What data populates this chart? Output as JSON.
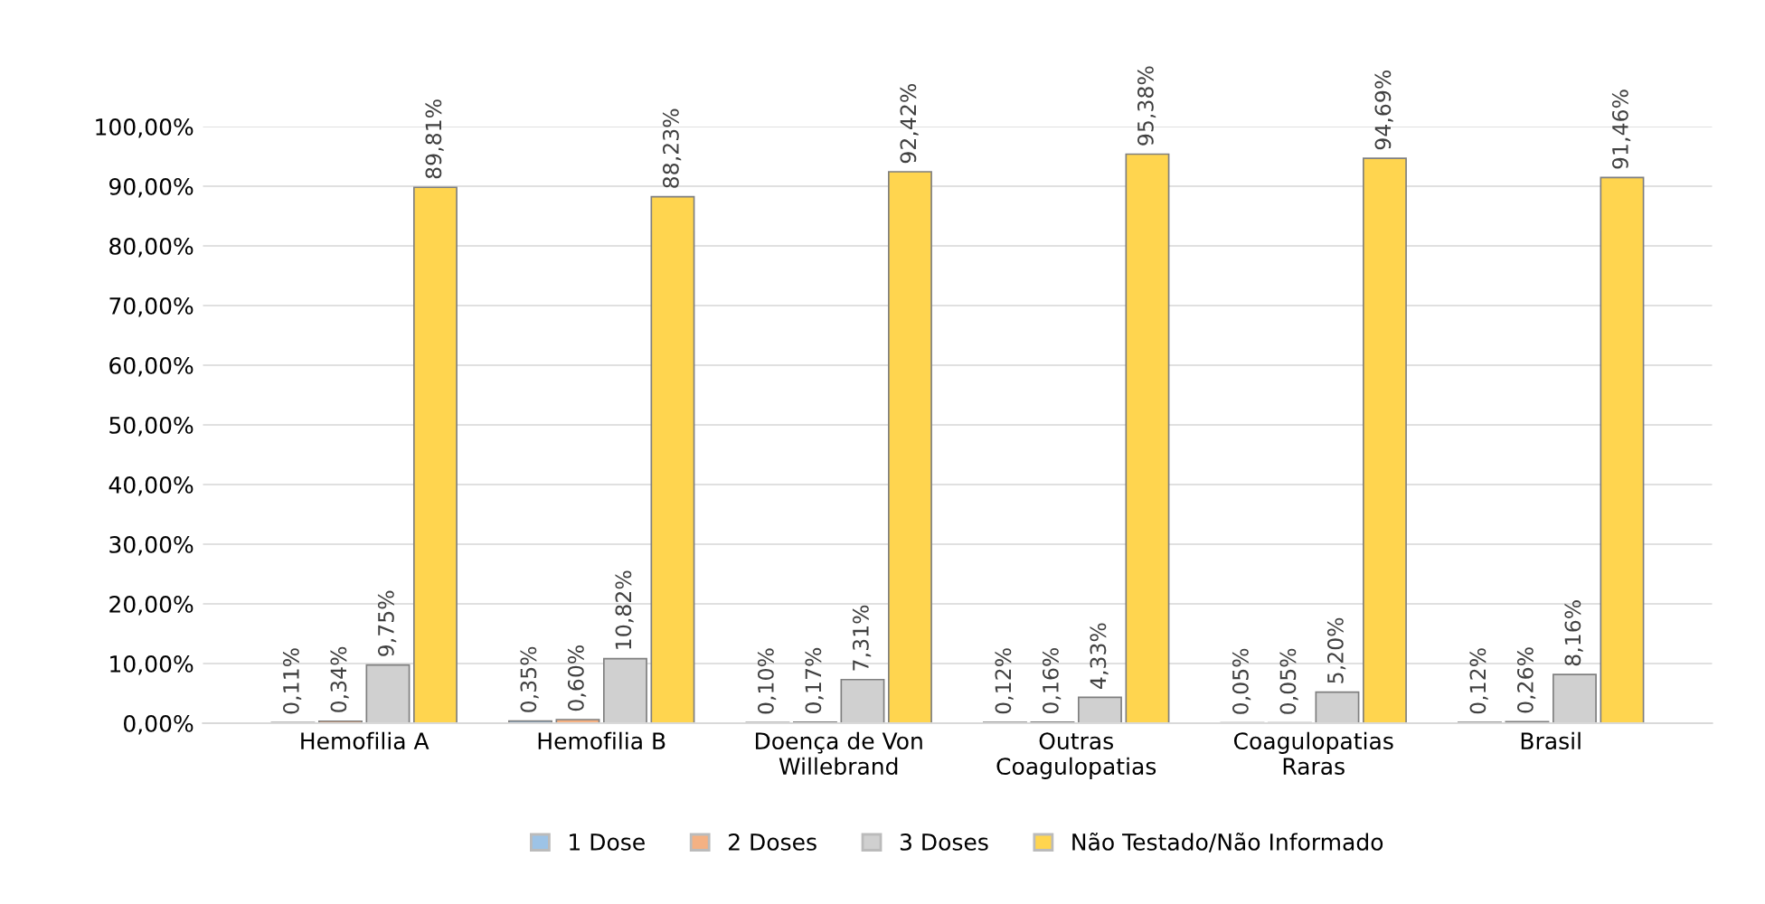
{
  "chart_data": {
    "type": "bar",
    "categories": [
      "Hemofilia A",
      "Hemofilia B",
      "Doença de Von\nWillebrand",
      "Outras\nCoagulopatias",
      "Coagulopatias\nRaras",
      "Brasil"
    ],
    "series": [
      {
        "name": "1 Dose",
        "color": "#9dc3e6",
        "values": [
          0.11,
          0.35,
          0.1,
          0.12,
          0.05,
          0.12
        ],
        "value_labels": [
          "0,11%",
          "0,35%",
          "0,10%",
          "0,12%",
          "0,05%",
          "0,12%"
        ]
      },
      {
        "name": "2 Doses",
        "color": "#f4b183",
        "values": [
          0.34,
          0.6,
          0.17,
          0.16,
          0.05,
          0.26
        ],
        "value_labels": [
          "0,34%",
          "0,60%",
          "0,17%",
          "0,16%",
          "0,05%",
          "0,26%"
        ]
      },
      {
        "name": "3 Doses",
        "color": "#d0d0d0",
        "values": [
          9.75,
          10.82,
          7.31,
          4.33,
          5.2,
          8.16
        ],
        "value_labels": [
          "9,75%",
          "10,82%",
          "7,31%",
          "4,33%",
          "5,20%",
          "8,16%"
        ]
      },
      {
        "name": "Não Testado/Não Informado",
        "color": "#ffd54f",
        "values": [
          89.81,
          88.23,
          92.42,
          95.38,
          94.69,
          91.46
        ],
        "value_labels": [
          "89,81%",
          "88,23%",
          "92,42%",
          "95,38%",
          "94,69%",
          "91,46%"
        ]
      }
    ],
    "ylim": [
      0,
      100
    ],
    "yticks": [
      {
        "value": 0,
        "label": "0,00%"
      },
      {
        "value": 10,
        "label": "10,00%"
      },
      {
        "value": 20,
        "label": "20,00%"
      },
      {
        "value": 30,
        "label": "30,00%"
      },
      {
        "value": 40,
        "label": "40,00%"
      },
      {
        "value": 50,
        "label": "50,00%"
      },
      {
        "value": 60,
        "label": "60,00%"
      },
      {
        "value": 70,
        "label": "70,00%"
      },
      {
        "value": 80,
        "label": "80,00%"
      },
      {
        "value": 90,
        "label": "90,00%"
      },
      {
        "value": 100,
        "label": "100,00%"
      }
    ],
    "grid": "y",
    "legend": "bottom"
  }
}
